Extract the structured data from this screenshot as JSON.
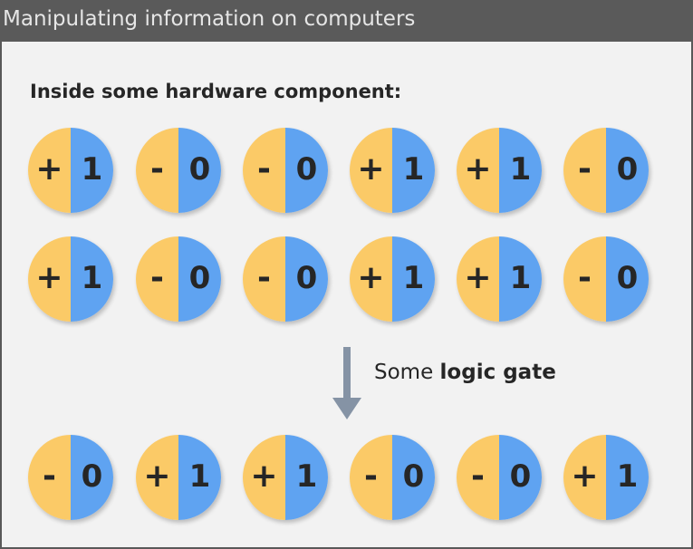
{
  "title": "Manipulating information on computers",
  "section_label": "Inside some hardware component:",
  "rows": [
    [
      {
        "sign": "+",
        "digit": "1"
      },
      {
        "sign": "-",
        "digit": "0"
      },
      {
        "sign": "-",
        "digit": "0"
      },
      {
        "sign": "+",
        "digit": "1"
      },
      {
        "sign": "+",
        "digit": "1"
      },
      {
        "sign": "-",
        "digit": "0"
      }
    ],
    [
      {
        "sign": "+",
        "digit": "1"
      },
      {
        "sign": "-",
        "digit": "0"
      },
      {
        "sign": "-",
        "digit": "0"
      },
      {
        "sign": "+",
        "digit": "1"
      },
      {
        "sign": "+",
        "digit": "1"
      },
      {
        "sign": "-",
        "digit": "0"
      }
    ],
    [
      {
        "sign": "-",
        "digit": "0"
      },
      {
        "sign": "+",
        "digit": "1"
      },
      {
        "sign": "+",
        "digit": "1"
      },
      {
        "sign": "-",
        "digit": "0"
      },
      {
        "sign": "-",
        "digit": "0"
      },
      {
        "sign": "+",
        "digit": "1"
      }
    ]
  ],
  "gate": {
    "prefix": "Some ",
    "emphasis": "logic gate"
  },
  "colors": {
    "positive_half": "#fbca67",
    "value_half": "#5fa3f1",
    "title_bar": "#5a5a5a",
    "panel": "#f2f2f2",
    "arrow": "#8593a5"
  }
}
